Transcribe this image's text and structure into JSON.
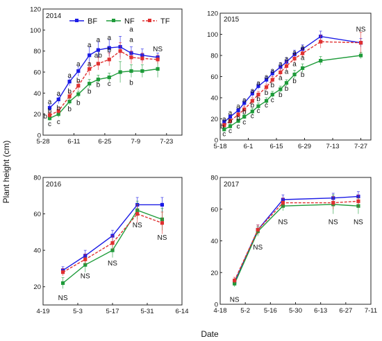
{
  "figure": {
    "ylabel": "Plant height (cm)",
    "xlabel": "Date",
    "legend": [
      "BF",
      "NF",
      "TF"
    ]
  },
  "chart_data": [
    {
      "type": "line",
      "title": "2014",
      "xticks": [
        "5-28",
        "6-11",
        "6-25",
        "7-9",
        "7-23"
      ],
      "xlim_days": [
        0,
        63
      ],
      "xtick_days": [
        0,
        14,
        28,
        42,
        56
      ],
      "ylim": [
        0,
        120
      ],
      "yticks": [
        0,
        20,
        40,
        60,
        80,
        100,
        120
      ],
      "x_days": [
        3,
        7,
        12,
        16,
        21,
        25,
        30,
        35,
        40,
        45,
        52
      ],
      "series": [
        {
          "name": "BF",
          "color": "#1a1ae6",
          "dashed": false,
          "values": [
            26,
            34,
            51,
            61,
            76,
            81,
            83,
            84,
            78,
            76,
            74
          ],
          "errors": [
            3,
            4,
            4,
            5,
            8,
            8,
            8,
            10,
            6,
            6,
            4
          ]
        },
        {
          "name": "NF",
          "color": "#1e9b3a",
          "dashed": false,
          "values": [
            16,
            20,
            32,
            39,
            49,
            53,
            55,
            60,
            61,
            61,
            63
          ],
          "errors": [
            2,
            3,
            3,
            3,
            4,
            4,
            4,
            10,
            6,
            6,
            8
          ]
        },
        {
          "name": "TF",
          "color": "#e03030",
          "dashed": true,
          "values": [
            19,
            23,
            37,
            47,
            63,
            68,
            72,
            80,
            74,
            73,
            72
          ],
          "errors": [
            3,
            3,
            4,
            4,
            6,
            6,
            6,
            8,
            6,
            5,
            4
          ]
        }
      ],
      "annotations": [
        {
          "x": 3,
          "y": 32,
          "text": "a"
        },
        {
          "x": 3,
          "y": 23,
          "text": "b"
        },
        {
          "x": 1,
          "y": 18,
          "text": "b"
        },
        {
          "x": 3,
          "y": 11,
          "text": "c"
        },
        {
          "x": 7,
          "y": 40,
          "text": "a"
        },
        {
          "x": 7,
          "y": 26,
          "text": "b"
        },
        {
          "x": 7,
          "y": 13,
          "text": "c"
        },
        {
          "x": 12,
          "y": 57,
          "text": "a"
        },
        {
          "x": 12,
          "y": 42,
          "text": "b"
        },
        {
          "x": 12,
          "y": 25,
          "text": "b"
        },
        {
          "x": 16,
          "y": 68,
          "text": "a"
        },
        {
          "x": 16,
          "y": 52,
          "text": "b"
        },
        {
          "x": 16,
          "y": 31,
          "text": "b"
        },
        {
          "x": 21,
          "y": 86,
          "text": "a"
        },
        {
          "x": 21,
          "y": 68,
          "text": "a"
        },
        {
          "x": 21,
          "y": 42,
          "text": "b"
        },
        {
          "x": 25,
          "y": 91,
          "text": "a"
        },
        {
          "x": 25,
          "y": 76,
          "text": "ab"
        },
        {
          "x": 25,
          "y": 48,
          "text": "b"
        },
        {
          "x": 30,
          "y": 93,
          "text": "a"
        },
        {
          "x": 30,
          "y": 81,
          "text": "b"
        },
        {
          "x": 30,
          "y": 49,
          "text": "c"
        },
        {
          "x": 40,
          "y": 101,
          "text": "a"
        },
        {
          "x": 40,
          "y": 91,
          "text": "a"
        },
        {
          "x": 40,
          "y": 50,
          "text": "b"
        },
        {
          "x": 52,
          "y": 82,
          "text": "NS"
        }
      ]
    },
    {
      "type": "line",
      "title": "2015",
      "xticks": [
        "5-18",
        "6-1",
        "6-15",
        "6-29",
        "7-13",
        "7-27"
      ],
      "xlim_days": [
        0,
        75
      ],
      "xtick_days": [
        0,
        14,
        28,
        42,
        56,
        70
      ],
      "ylim": [
        0,
        120
      ],
      "yticks": [
        0,
        20,
        40,
        60,
        80,
        100,
        120
      ],
      "x_days": [
        2,
        5,
        9,
        12,
        16,
        19,
        23,
        26,
        30,
        33,
        37,
        41,
        50,
        70
      ],
      "series": [
        {
          "name": "BF",
          "color": "#1a1ae6",
          "dashed": false,
          "values": [
            17,
            22,
            28,
            35,
            44,
            51,
            57,
            63,
            69,
            74,
            81,
            86,
            98,
            92
          ],
          "errors": [
            2,
            2,
            2,
            3,
            3,
            3,
            3,
            3,
            4,
            4,
            4,
            4,
            5,
            4
          ]
        },
        {
          "name": "NF",
          "color": "#1e9b3a",
          "dashed": false,
          "values": [
            10,
            13,
            18,
            22,
            27,
            32,
            37,
            43,
            48,
            54,
            62,
            68,
            75,
            80
          ],
          "errors": [
            2,
            2,
            2,
            2,
            3,
            3,
            3,
            3,
            3,
            3,
            4,
            4,
            4,
            3
          ]
        },
        {
          "name": "TF",
          "color": "#e03030",
          "dashed": true,
          "values": [
            14,
            18,
            24,
            29,
            37,
            43,
            50,
            57,
            64,
            70,
            77,
            82,
            93,
            92
          ],
          "errors": [
            2,
            2,
            2,
            3,
            3,
            3,
            3,
            3,
            4,
            4,
            4,
            4,
            6,
            10
          ]
        }
      ],
      "annotations": [
        {
          "x": 2,
          "y": 20,
          "text": "a"
        },
        {
          "x": 1,
          "y": 13,
          "text": "b"
        },
        {
          "x": 2,
          "y": 6,
          "text": "c"
        },
        {
          "x": 5,
          "y": 26,
          "text": "a"
        },
        {
          "x": 5,
          "y": 18,
          "text": "b"
        },
        {
          "x": 5,
          "y": 9,
          "text": "c"
        },
        {
          "x": 9,
          "y": 32,
          "text": "a"
        },
        {
          "x": 9,
          "y": 21,
          "text": "b"
        },
        {
          "x": 9,
          "y": 13,
          "text": "c"
        },
        {
          "x": 12,
          "y": 38,
          "text": "a"
        },
        {
          "x": 12,
          "y": 27,
          "text": "b"
        },
        {
          "x": 12,
          "y": 17,
          "text": "c"
        },
        {
          "x": 16,
          "y": 47,
          "text": "a"
        },
        {
          "x": 16,
          "y": 33,
          "text": "b"
        },
        {
          "x": 16,
          "y": 23,
          "text": "c"
        },
        {
          "x": 19,
          "y": 54,
          "text": "a"
        },
        {
          "x": 19,
          "y": 39,
          "text": "b"
        },
        {
          "x": 19,
          "y": 28,
          "text": "c"
        },
        {
          "x": 23,
          "y": 60,
          "text": "a"
        },
        {
          "x": 23,
          "y": 45,
          "text": "b"
        },
        {
          "x": 23,
          "y": 33,
          "text": "c"
        },
        {
          "x": 26,
          "y": 66,
          "text": "a"
        },
        {
          "x": 26,
          "y": 52,
          "text": "b"
        },
        {
          "x": 26,
          "y": 38,
          "text": "c"
        },
        {
          "x": 30,
          "y": 72,
          "text": "a"
        },
        {
          "x": 30,
          "y": 59,
          "text": "a"
        },
        {
          "x": 30,
          "y": 43,
          "text": "b"
        },
        {
          "x": 33,
          "y": 77,
          "text": "a"
        },
        {
          "x": 33,
          "y": 65,
          "text": "a"
        },
        {
          "x": 33,
          "y": 49,
          "text": "b"
        },
        {
          "x": 37,
          "y": 83,
          "text": "a"
        },
        {
          "x": 37,
          "y": 72,
          "text": "a"
        },
        {
          "x": 37,
          "y": 56,
          "text": "b"
        },
        {
          "x": 41,
          "y": 88,
          "text": "a"
        },
        {
          "x": 41,
          "y": 78,
          "text": "a"
        },
        {
          "x": 41,
          "y": 62,
          "text": "b"
        },
        {
          "x": 70,
          "y": 105,
          "text": "NS"
        }
      ]
    },
    {
      "type": "line",
      "title": "2016",
      "xticks": [
        "4-19",
        "5-3",
        "5-17",
        "5-31",
        "6-14"
      ],
      "xlim_days": [
        0,
        56
      ],
      "xtick_days": [
        0,
        14,
        28,
        42,
        56
      ],
      "ylim": [
        10,
        80
      ],
      "yticks": [
        20,
        40,
        60,
        80
      ],
      "x_days": [
        8,
        17,
        28,
        38,
        48
      ],
      "series": [
        {
          "name": "BF",
          "color": "#1a1ae6",
          "dashed": false,
          "values": [
            29,
            37,
            48,
            65,
            65
          ],
          "errors": [
            2,
            3,
            3,
            4,
            4
          ]
        },
        {
          "name": "NF",
          "color": "#1e9b3a",
          "dashed": false,
          "values": [
            22,
            32,
            40,
            62,
            57
          ],
          "errors": [
            3,
            4,
            4,
            5,
            6
          ]
        },
        {
          "name": "TF",
          "color": "#e03030",
          "dashed": true,
          "values": [
            28,
            35,
            44,
            60,
            55
          ],
          "errors": [
            2,
            3,
            4,
            5,
            6
          ]
        }
      ],
      "annotations": [
        {
          "x": 8,
          "y": 14,
          "text": "NS"
        },
        {
          "x": 17,
          "y": 26,
          "text": "NS"
        },
        {
          "x": 28,
          "y": 33,
          "text": "NS"
        },
        {
          "x": 38,
          "y": 54,
          "text": "NS"
        },
        {
          "x": 48,
          "y": 47,
          "text": "NS"
        }
      ]
    },
    {
      "type": "line",
      "title": "2017",
      "xticks": [
        "4-18",
        "5-2",
        "5-16",
        "5-30",
        "6-13",
        "6-27",
        "7-11"
      ],
      "xlim_days": [
        0,
        84
      ],
      "xtick_days": [
        0,
        14,
        28,
        42,
        56,
        70,
        84
      ],
      "ylim": [
        0,
        80
      ],
      "yticks": [
        0,
        20,
        40,
        60,
        80
      ],
      "x_days": [
        8,
        21,
        35,
        63,
        77
      ],
      "series": [
        {
          "name": "BF",
          "color": "#1a1ae6",
          "dashed": false,
          "values": [
            14,
            47,
            66,
            67,
            68
          ],
          "errors": [
            2,
            3,
            3,
            3,
            3
          ]
        },
        {
          "name": "NF",
          "color": "#1e9b3a",
          "dashed": false,
          "values": [
            13,
            46,
            62,
            63,
            62
          ],
          "errors": [
            2,
            3,
            3,
            6,
            5
          ]
        },
        {
          "name": "TF",
          "color": "#e03030",
          "dashed": true,
          "values": [
            15,
            47,
            64,
            64,
            65
          ],
          "errors": [
            2,
            3,
            3,
            4,
            4
          ]
        }
      ],
      "annotations": [
        {
          "x": 8,
          "y": 3,
          "text": "NS"
        },
        {
          "x": 21,
          "y": 36,
          "text": "NS"
        },
        {
          "x": 35,
          "y": 52,
          "text": "NS"
        },
        {
          "x": 63,
          "y": 52,
          "text": "NS"
        },
        {
          "x": 77,
          "y": 52,
          "text": "NS"
        }
      ]
    }
  ]
}
